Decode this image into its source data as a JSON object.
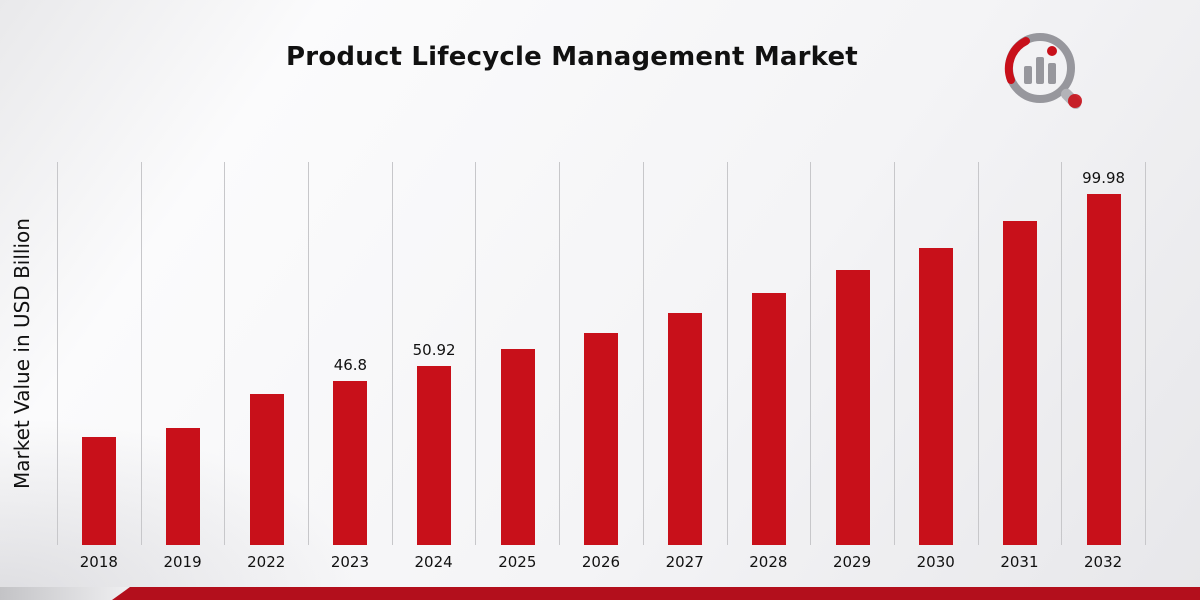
{
  "page": {
    "title": "Product Lifecycle Management Market"
  },
  "branding": {
    "logo": "market-research-magnifier-bars-logo",
    "accent_red": "#c8101a",
    "footer_bar_color": "#b30f1c",
    "logo_gray": "#97979d"
  },
  "chart_data": {
    "type": "bar",
    "title": "Product Lifecycle Management Market",
    "xlabel": "",
    "ylabel": "Market Value in USD Billion",
    "ylim": [
      0,
      109
    ],
    "grid": "vertical-gridlines-only",
    "legend_position": "none",
    "bar_color": "#c8101a",
    "categories": [
      "2018",
      "2019",
      "2022",
      "2023",
      "2024",
      "2025",
      "2026",
      "2027",
      "2028",
      "2029",
      "2030",
      "2031",
      "2032"
    ],
    "values": [
      30.6,
      33.4,
      43.0,
      46.8,
      50.92,
      55.9,
      60.3,
      66.0,
      71.6,
      78.2,
      84.6,
      92.3,
      99.98
    ],
    "data_labels": [
      "",
      "",
      "",
      "46.8",
      "50.92",
      "",
      "",
      "",
      "",
      "",
      "",
      "",
      "99.98"
    ]
  }
}
